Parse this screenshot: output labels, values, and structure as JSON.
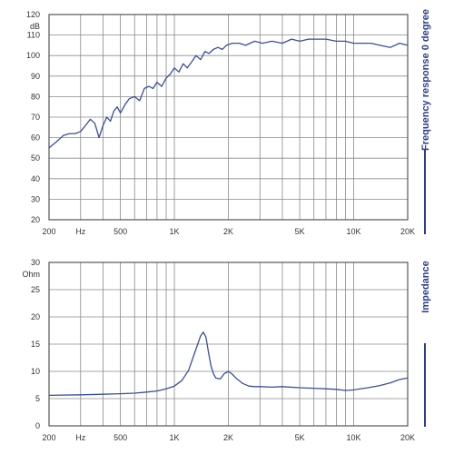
{
  "chart_data": [
    {
      "type": "line",
      "side_title": "Frequency response 0 degree",
      "unit_label": "dB",
      "xscale": "log",
      "xlim": [
        200,
        20000
      ],
      "ylim": [
        20,
        120
      ],
      "x_ticks": [
        {
          "value": 200,
          "label": "200"
        },
        {
          "value": 300,
          "label": "Hz"
        },
        {
          "value": 500,
          "label": "500"
        },
        {
          "value": 1000,
          "label": "1K"
        },
        {
          "value": 2000,
          "label": "2K"
        },
        {
          "value": 5000,
          "label": "5K"
        },
        {
          "value": 10000,
          "label": "10K"
        },
        {
          "value": 20000,
          "label": "20K"
        }
      ],
      "y_ticks": [
        20,
        30,
        40,
        50,
        60,
        70,
        80,
        90,
        100,
        110,
        120
      ],
      "grid": true,
      "line_color": "#3a4f9c",
      "series": [
        {
          "x": [
            200,
            220,
            240,
            260,
            280,
            300,
            320,
            340,
            360,
            380,
            400,
            420,
            440,
            460,
            480,
            500,
            530,
            560,
            600,
            640,
            680,
            720,
            760,
            800,
            850,
            900,
            950,
            1000,
            1060,
            1120,
            1180,
            1250,
            1320,
            1400,
            1480,
            1560,
            1650,
            1750,
            1850,
            1950,
            2100,
            2300,
            2500,
            2800,
            3100,
            3500,
            4000,
            4500,
            5000,
            5600,
            6300,
            7000,
            8000,
            9000,
            10000,
            11000,
            12500,
            14000,
            16000,
            18000,
            20000
          ],
          "y": [
            55,
            58,
            61,
            62,
            62,
            63,
            66,
            69,
            67,
            60,
            66,
            70,
            68,
            73,
            75,
            72,
            76,
            79,
            80,
            78,
            84,
            85,
            84,
            87,
            85,
            89,
            91,
            94,
            92,
            96,
            94,
            97,
            100,
            98,
            102,
            101,
            103,
            104,
            103,
            105,
            106,
            106,
            105,
            107,
            106,
            107,
            106,
            108,
            107,
            108,
            108,
            108,
            107,
            107,
            106,
            106,
            106,
            105,
            104,
            106,
            105
          ]
        }
      ]
    },
    {
      "type": "line",
      "side_title": "Impedance",
      "unit_label": "Ohm",
      "xscale": "log",
      "xlim": [
        200,
        20000
      ],
      "ylim": [
        0,
        30
      ],
      "x_ticks": [
        {
          "value": 200,
          "label": "200"
        },
        {
          "value": 300,
          "label": "Hz"
        },
        {
          "value": 500,
          "label": "500"
        },
        {
          "value": 1000,
          "label": "1K"
        },
        {
          "value": 2000,
          "label": "2K"
        },
        {
          "value": 5000,
          "label": "5K"
        },
        {
          "value": 10000,
          "label": "10K"
        },
        {
          "value": 20000,
          "label": "20K"
        }
      ],
      "y_ticks": [
        0,
        5,
        10,
        15,
        20,
        25,
        30
      ],
      "grid": true,
      "line_color": "#3a4f9c",
      "series": [
        {
          "x": [
            200,
            300,
            400,
            500,
            600,
            700,
            800,
            900,
            1000,
            1100,
            1200,
            1300,
            1400,
            1450,
            1500,
            1550,
            1600,
            1650,
            1700,
            1800,
            1900,
            2000,
            2100,
            2200,
            2400,
            2600,
            2800,
            3000,
            3500,
            4000,
            5000,
            6000,
            7000,
            8000,
            9000,
            10000,
            12000,
            14000,
            16000,
            18000,
            20000
          ],
          "y": [
            5.6,
            5.7,
            5.8,
            5.9,
            6.0,
            6.2,
            6.4,
            6.8,
            7.3,
            8.3,
            10.2,
            13.5,
            16.5,
            17.2,
            16.3,
            13.5,
            11.0,
            9.6,
            8.8,
            8.6,
            9.6,
            10.0,
            9.5,
            8.8,
            7.8,
            7.3,
            7.2,
            7.2,
            7.1,
            7.2,
            7.0,
            6.9,
            6.8,
            6.7,
            6.5,
            6.6,
            7.0,
            7.4,
            7.9,
            8.5,
            8.8
          ]
        }
      ]
    }
  ]
}
